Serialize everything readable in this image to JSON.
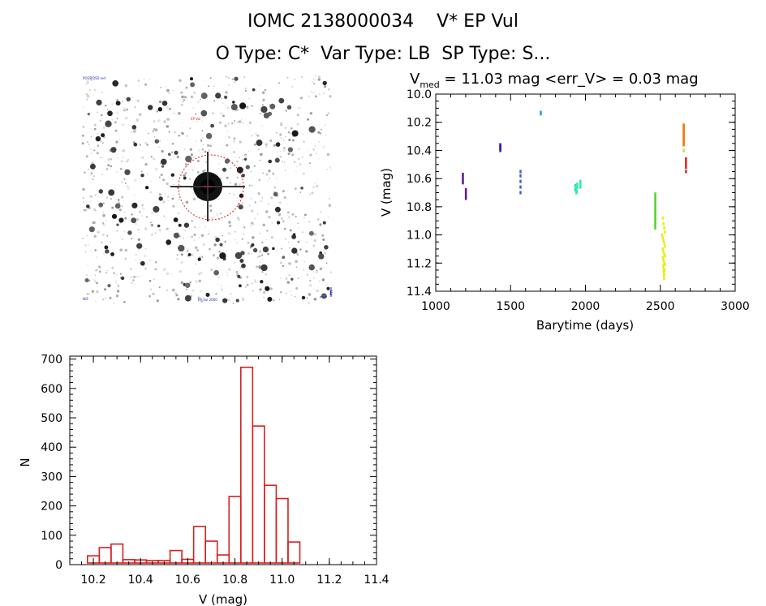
{
  "header": {
    "title_line1": "IOMC 2138000034    V* EP Vul",
    "title_line2": "O Type: C*  Var Type: LB  SP Type: S..."
  },
  "finder": {
    "label_top_left": "POSS DSS red",
    "label_target": "EP Vul",
    "label_bottom_left": "N/E",
    "label_bottom_center": "EP Vul 2000",
    "label_bottom_right": "E"
  },
  "colors": {
    "hist_bar": "#d32020",
    "circle": "#e02020"
  },
  "chart_data": [
    {
      "type": "scatter",
      "title_parts": {
        "v": "V",
        "sub": "med",
        "rest": " = 11.03 mag <err_V> = 0.03 mag"
      },
      "xlabel": "Barytime (days)",
      "ylabel": "V (mag)",
      "xlim": [
        1000,
        3000
      ],
      "ylim": [
        10.0,
        11.4
      ],
      "y_inverted": true,
      "xticks": [
        1000,
        1500,
        2000,
        2500,
        3000
      ],
      "yticks": [
        "10.0",
        "10.2",
        "10.4",
        "10.6",
        "10.8",
        "11.0",
        "11.2",
        "11.4"
      ],
      "series": [
        {
          "name": "s1",
          "color": "#5a189a",
          "x": [
            1180,
            1180,
            1180,
            1180,
            1200,
            1200,
            1200,
            1200
          ],
          "y": [
            10.57,
            10.59,
            10.61,
            10.63,
            10.68,
            10.7,
            10.72,
            10.74
          ]
        },
        {
          "name": "s2",
          "color": "#2a1fb0",
          "x": [
            1430,
            1430,
            1430,
            1430,
            1430
          ],
          "y": [
            10.36,
            10.37,
            10.38,
            10.39,
            10.4
          ]
        },
        {
          "name": "s3",
          "color": "#3f62c9",
          "x": [
            1565,
            1565,
            1565,
            1565,
            1565
          ],
          "y": [
            10.55,
            10.58,
            10.62,
            10.66,
            10.7
          ]
        },
        {
          "name": "s4",
          "color": "#1fa3d9",
          "x": [
            1700,
            1700
          ],
          "y": [
            10.13,
            10.14
          ]
        },
        {
          "name": "s5",
          "color": "#2ee6b0",
          "x": [
            1930,
            1935,
            1940,
            1945,
            1930,
            1938,
            1944,
            1965,
            1965,
            1965
          ],
          "y": [
            10.65,
            10.67,
            10.69,
            10.66,
            10.68,
            10.7,
            10.64,
            10.62,
            10.64,
            10.66
          ]
        },
        {
          "name": "s6",
          "color": "#4fd62a",
          "x": [
            2465,
            2465,
            2465,
            2465,
            2465,
            2465,
            2465,
            2465,
            2465,
            2465,
            2465,
            2465,
            2465
          ],
          "y": [
            10.71,
            10.73,
            10.75,
            10.77,
            10.79,
            10.81,
            10.83,
            10.85,
            10.87,
            10.89,
            10.91,
            10.93,
            10.95
          ]
        },
        {
          "name": "s7",
          "color": "#e4f01a",
          "x": [
            2515,
            2520,
            2525,
            2530,
            2510,
            2515,
            2520,
            2525,
            2530,
            2515,
            2520,
            2525,
            2530,
            2515,
            2520,
            2525,
            2530,
            2518,
            2522,
            2527,
            2520,
            2525,
            2522,
            2524
          ],
          "y": [
            10.88,
            10.92,
            10.95,
            10.98,
            11.0,
            11.02,
            11.04,
            11.06,
            11.08,
            11.1,
            11.12,
            11.14,
            11.15,
            11.16,
            11.18,
            11.2,
            11.21,
            11.22,
            11.24,
            11.25,
            11.26,
            11.28,
            11.29,
            11.31
          ]
        },
        {
          "name": "s8",
          "color": "#f07a10",
          "x": [
            2655,
            2655,
            2655,
            2655,
            2655,
            2655,
            2655,
            2655,
            2655,
            2655,
            2655,
            2655,
            2655,
            2655,
            2655
          ],
          "y": [
            10.22,
            10.23,
            10.24,
            10.25,
            10.26,
            10.27,
            10.28,
            10.29,
            10.3,
            10.31,
            10.32,
            10.33,
            10.34,
            10.35,
            10.36
          ]
        },
        {
          "name": "s9",
          "color": "#c8e020",
          "x": [
            2655
          ],
          "y": [
            10.4
          ]
        },
        {
          "name": "s10",
          "color": "#e02020",
          "x": [
            2670,
            2670,
            2670,
            2670,
            2670
          ],
          "y": [
            10.46,
            10.48,
            10.5,
            10.52,
            10.55
          ]
        }
      ]
    },
    {
      "type": "bar",
      "xlabel": "V (mag)",
      "ylabel": "N",
      "xlim": [
        10.1,
        11.4
      ],
      "ylim": [
        0,
        700
      ],
      "xticks": [
        "10.2",
        "10.4",
        "10.6",
        "10.8",
        "11.0",
        "11.2",
        "11.4"
      ],
      "yticks": [
        "0",
        "100",
        "200",
        "300",
        "400",
        "500",
        "600",
        "700"
      ],
      "bin_edges": [
        10.125,
        10.175,
        10.225,
        10.275,
        10.325,
        10.375,
        10.425,
        10.475,
        10.525,
        10.575,
        10.625,
        10.675,
        10.725,
        10.775,
        10.825,
        10.875,
        10.925,
        10.975,
        11.025,
        11.075,
        11.125,
        11.175,
        11.225,
        11.275,
        11.325,
        11.375
      ],
      "values": [
        5,
        30,
        58,
        70,
        17,
        16,
        14,
        14,
        48,
        18,
        130,
        80,
        33,
        232,
        672,
        472,
        270,
        225,
        77,
        3,
        0,
        0,
        0,
        0,
        0
      ]
    }
  ]
}
